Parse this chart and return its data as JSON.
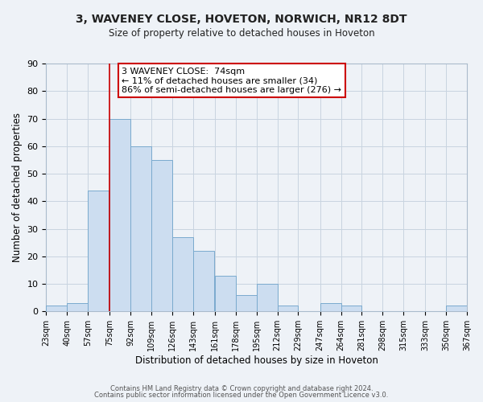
{
  "title": "3, WAVENEY CLOSE, HOVETON, NORWICH, NR12 8DT",
  "subtitle": "Size of property relative to detached houses in Hoveton",
  "xlabel": "Distribution of detached houses by size in Hoveton",
  "ylabel": "Number of detached properties",
  "bin_edges": [
    23,
    40,
    57,
    75,
    92,
    109,
    126,
    143,
    161,
    178,
    195,
    212,
    229,
    247,
    264,
    281,
    298,
    315,
    333,
    350,
    367
  ],
  "bin_labels": [
    "23sqm",
    "40sqm",
    "57sqm",
    "75sqm",
    "92sqm",
    "109sqm",
    "126sqm",
    "143sqm",
    "161sqm",
    "178sqm",
    "195sqm",
    "212sqm",
    "229sqm",
    "247sqm",
    "264sqm",
    "281sqm",
    "298sqm",
    "315sqm",
    "333sqm",
    "350sqm",
    "367sqm"
  ],
  "counts": [
    2,
    3,
    44,
    70,
    60,
    55,
    27,
    22,
    13,
    6,
    10,
    2,
    0,
    3,
    2,
    0,
    0,
    0,
    0,
    2
  ],
  "bar_color": "#ccddf0",
  "bar_edge_color": "#7aaace",
  "reference_line_x": 75,
  "reference_line_color": "#cc0000",
  "ylim": [
    0,
    90
  ],
  "yticks": [
    0,
    10,
    20,
    30,
    40,
    50,
    60,
    70,
    80,
    90
  ],
  "annotation_box_text": "3 WAVENEY CLOSE:  74sqm\n← 11% of detached houses are smaller (34)\n86% of semi-detached houses are larger (276) →",
  "annotation_box_color": "#cc0000",
  "annotation_box_facecolor": "#ffffff",
  "footer_line1": "Contains HM Land Registry data © Crown copyright and database right 2024.",
  "footer_line2": "Contains public sector information licensed under the Open Government Licence v3.0.",
  "grid_color": "#c8d4e0",
  "background_color": "#eef2f7"
}
